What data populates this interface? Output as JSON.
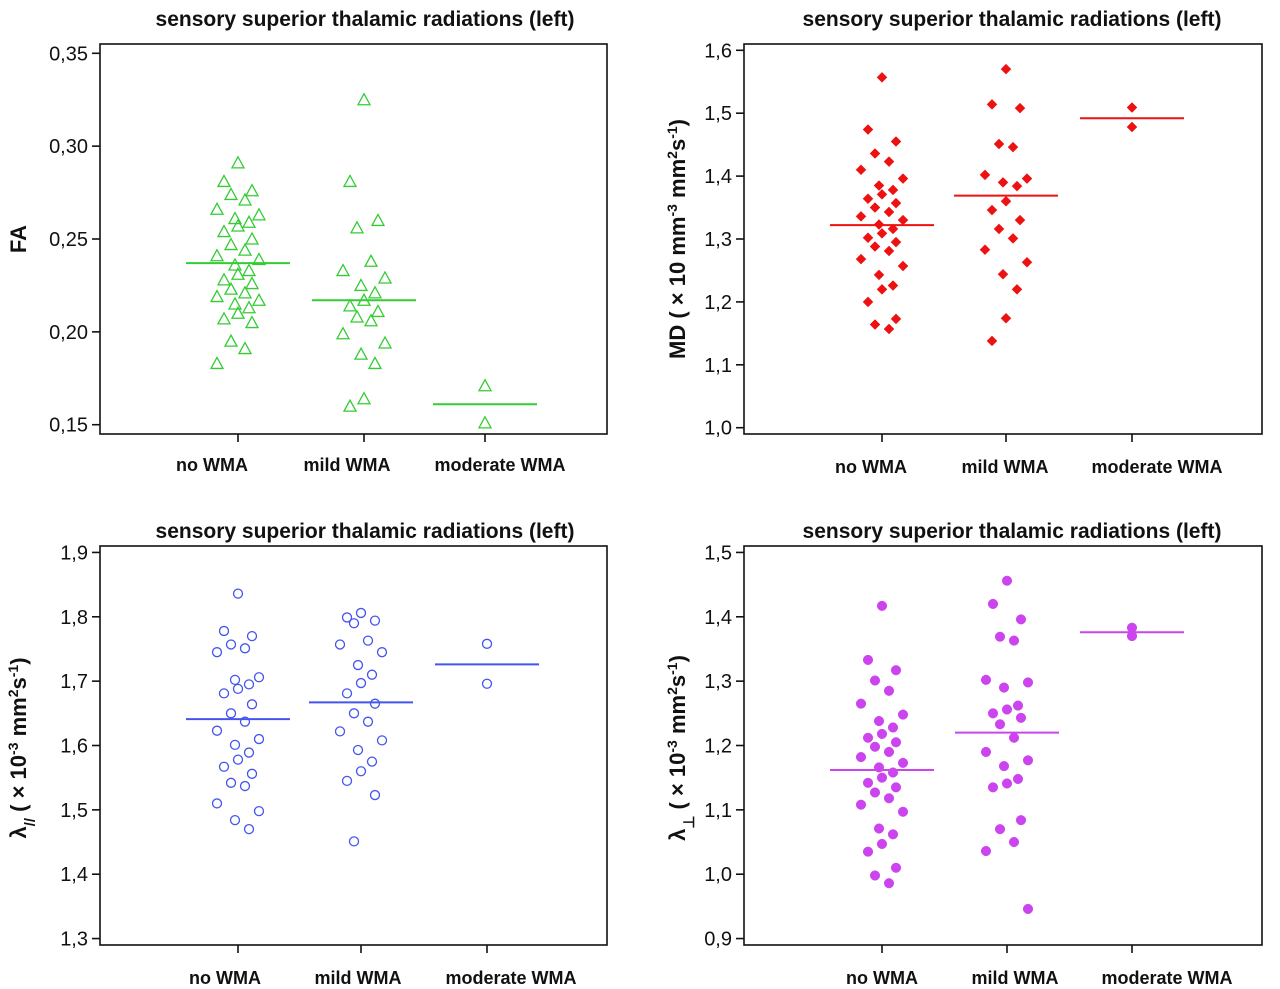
{
  "chart_data": [
    {
      "type": "scatter",
      "title": "sensory superior thalamic radiations (left)",
      "ylabel_main": "FA",
      "ylabel_sub": "",
      "ylabel_rest": "",
      "ylim": [
        0.145,
        0.355
      ],
      "yticks": [
        0.15,
        0.2,
        0.25,
        0.3,
        0.35
      ],
      "yticklabels": [
        "0,15",
        "0,20",
        "0,25",
        "0,30",
        "0,35"
      ],
      "categories": [
        "no WMA",
        "mild WMA",
        "moderate WMA"
      ],
      "marker": "triangle-open",
      "color": "#33cc33",
      "means": [
        0.237,
        0.217,
        0.161
      ],
      "points": [
        [
          0.291,
          0.281,
          0.276,
          0.274,
          0.271,
          0.266,
          0.263,
          0.261,
          0.259,
          0.257,
          0.254,
          0.25,
          0.247,
          0.244,
          0.241,
          0.239,
          0.236,
          0.233,
          0.231,
          0.228,
          0.226,
          0.223,
          0.221,
          0.219,
          0.217,
          0.215,
          0.213,
          0.21,
          0.207,
          0.205,
          0.195,
          0.191,
          0.183
        ],
        [
          0.325,
          0.281,
          0.26,
          0.256,
          0.238,
          0.233,
          0.229,
          0.225,
          0.221,
          0.217,
          0.214,
          0.211,
          0.208,
          0.206,
          0.199,
          0.194,
          0.188,
          0.183,
          0.164,
          0.16
        ],
        [
          0.171,
          0.151
        ]
      ]
    },
    {
      "type": "scatter",
      "title": "sensory superior thalamic radiations (left)",
      "ylabel_main": "MD ( × 10",
      "ylabel_sup": "-3",
      "ylabel_rest": " mm",
      "ylabel_sup2": "2",
      "ylabel_rest2": "s",
      "ylabel_sup3": "-1",
      "ylabel_end": ")",
      "ylim": [
        0.99,
        1.61
      ],
      "yticks": [
        1.0,
        1.1,
        1.2,
        1.3,
        1.4,
        1.5,
        1.6
      ],
      "yticklabels": [
        "1,0",
        "1,1",
        "1,2",
        "1,3",
        "1,4",
        "1,5",
        "1,6"
      ],
      "categories": [
        "no WMA",
        "mild WMA",
        "moderate WMA"
      ],
      "marker": "diamond-filled",
      "color": "#ee1111",
      "means": [
        1.322,
        1.369,
        1.492
      ],
      "points": [
        [
          1.557,
          1.474,
          1.455,
          1.436,
          1.423,
          1.41,
          1.396,
          1.385,
          1.378,
          1.371,
          1.364,
          1.357,
          1.35,
          1.343,
          1.336,
          1.33,
          1.323,
          1.316,
          1.309,
          1.302,
          1.295,
          1.288,
          1.281,
          1.268,
          1.257,
          1.243,
          1.226,
          1.22,
          1.2,
          1.173,
          1.164,
          1.157
        ],
        [
          1.57,
          1.514,
          1.508,
          1.451,
          1.446,
          1.402,
          1.396,
          1.39,
          1.384,
          1.36,
          1.346,
          1.33,
          1.316,
          1.301,
          1.283,
          1.263,
          1.244,
          1.22,
          1.174,
          1.138
        ],
        [
          1.509,
          1.478
        ]
      ]
    },
    {
      "type": "scatter",
      "title": "sensory superior thalamic radiations (left)",
      "ylabel_main": "λ",
      "ylabel_sub": "//",
      "ylabel_rest": " ( × 10",
      "ylabel_sup": "-3",
      "ylabel_rest2": " mm",
      "ylabel_sup2": "2",
      "ylabel_rest3": "s",
      "ylabel_sup3": "-1",
      "ylabel_end": ")",
      "ylim": [
        1.29,
        1.91
      ],
      "yticks": [
        1.3,
        1.4,
        1.5,
        1.6,
        1.7,
        1.8,
        1.9
      ],
      "yticklabels": [
        "1,3",
        "1,4",
        "1,5",
        "1,6",
        "1,7",
        "1,8",
        "1,9"
      ],
      "categories": [
        "no WMA",
        "mild WMA",
        "moderate WMA"
      ],
      "marker": "circle-open",
      "color": "#4455ee",
      "means": [
        1.641,
        1.667,
        1.726
      ],
      "points": [
        [
          1.836,
          1.778,
          1.77,
          1.757,
          1.751,
          1.745,
          1.706,
          1.702,
          1.695,
          1.688,
          1.681,
          1.664,
          1.65,
          1.637,
          1.623,
          1.61,
          1.601,
          1.589,
          1.578,
          1.567,
          1.556,
          1.542,
          1.537,
          1.51,
          1.498,
          1.484,
          1.47
        ],
        [
          1.806,
          1.799,
          1.794,
          1.79,
          1.763,
          1.757,
          1.745,
          1.725,
          1.71,
          1.697,
          1.681,
          1.665,
          1.65,
          1.637,
          1.622,
          1.608,
          1.593,
          1.575,
          1.56,
          1.545,
          1.523,
          1.451
        ],
        [
          1.758,
          1.696
        ]
      ]
    },
    {
      "type": "scatter",
      "title": "sensory superior thalamic radiations (left)",
      "ylabel_main": "λ",
      "ylabel_sub": "⊥",
      "ylabel_rest": " ( × 10",
      "ylabel_sup": "-3",
      "ylabel_rest2": " mm",
      "ylabel_sup2": "2",
      "ylabel_rest3": "s",
      "ylabel_sup3": "-1",
      "ylabel_end": ")",
      "ylim": [
        0.89,
        1.51
      ],
      "yticks": [
        0.9,
        1.0,
        1.1,
        1.2,
        1.3,
        1.4,
        1.5
      ],
      "yticklabels": [
        "0,9",
        "1,0",
        "1,1",
        "1,2",
        "1,3",
        "1,4",
        "1,5"
      ],
      "categories": [
        "no WMA",
        "mild WMA",
        "moderate WMA"
      ],
      "marker": "circle-filled",
      "color": "#cc44ee",
      "means": [
        1.162,
        1.22,
        1.376
      ],
      "points": [
        [
          1.417,
          1.333,
          1.317,
          1.301,
          1.285,
          1.265,
          1.248,
          1.238,
          1.228,
          1.218,
          1.212,
          1.205,
          1.198,
          1.19,
          1.182,
          1.173,
          1.166,
          1.158,
          1.15,
          1.142,
          1.135,
          1.127,
          1.118,
          1.108,
          1.097,
          1.071,
          1.062,
          1.047,
          1.035,
          1.01,
          0.998,
          0.986
        ],
        [
          1.456,
          1.42,
          1.396,
          1.369,
          1.363,
          1.302,
          1.298,
          1.29,
          1.262,
          1.256,
          1.25,
          1.243,
          1.233,
          1.212,
          1.19,
          1.177,
          1.168,
          1.148,
          1.141,
          1.135,
          1.084,
          1.07,
          1.05,
          1.036,
          0.946
        ],
        [
          1.383,
          1.37
        ]
      ]
    }
  ]
}
